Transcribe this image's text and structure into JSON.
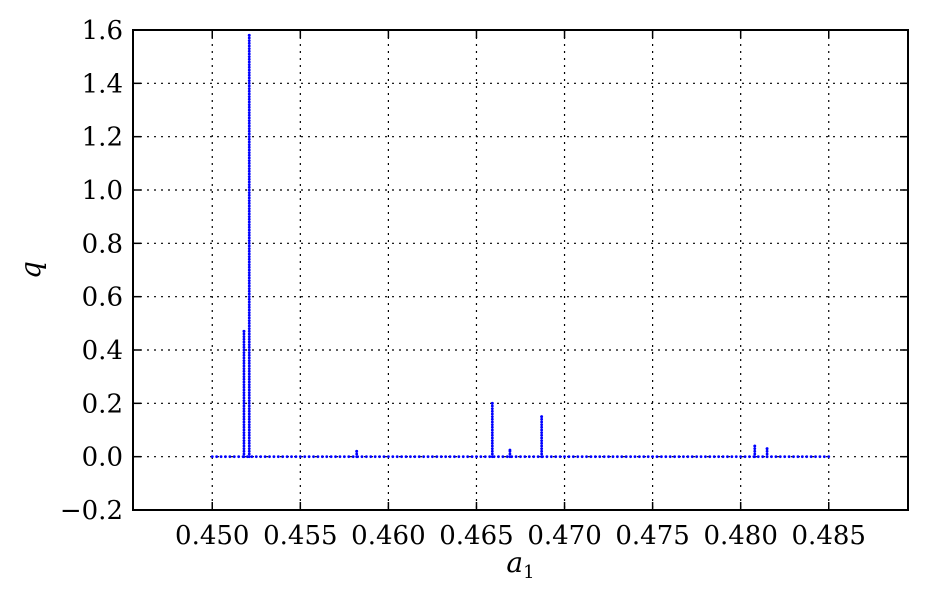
{
  "chart_data": {
    "type": "scatter",
    "xlabel": "a",
    "xlabel_subscript": "1",
    "ylabel": "q",
    "xlim": [
      0.4455,
      0.4895
    ],
    "ylim": [
      -0.2,
      1.6
    ],
    "xticks": [
      0.45,
      0.455,
      0.46,
      0.465,
      0.47,
      0.475,
      0.48,
      0.485
    ],
    "xtick_labels": [
      "0.450",
      "0.455",
      "0.460",
      "0.465",
      "0.470",
      "0.475",
      "0.480",
      "0.485"
    ],
    "yticks": [
      -0.2,
      0.0,
      0.2,
      0.4,
      0.6,
      0.8,
      1.0,
      1.2,
      1.4,
      1.6
    ],
    "ytick_labels": [
      "−0.2",
      "0.0",
      "0.2",
      "0.4",
      "0.6",
      "0.8",
      "1.0",
      "1.2",
      "1.4",
      "1.6"
    ],
    "grid": true,
    "series_color": "#0000ff",
    "baseline": {
      "x_start": 0.45,
      "x_end": 0.485,
      "x_step": 0.00025,
      "y": 0.0
    },
    "spikes": [
      {
        "x": 0.4518,
        "y_min": 0.0,
        "y_max": 0.47,
        "step": 0.01
      },
      {
        "x": 0.4521,
        "y_min": 0.0,
        "y_max": 1.58,
        "step": 0.01
      },
      {
        "x": 0.4582,
        "y_min": 0.0,
        "y_max": 0.02,
        "step": 0.01
      },
      {
        "x": 0.4659,
        "y_min": 0.0,
        "y_max": 0.2,
        "step": 0.01
      },
      {
        "x": 0.4669,
        "y_min": 0.0,
        "y_max": 0.025,
        "step": 0.01
      },
      {
        "x": 0.4687,
        "y_min": 0.0,
        "y_max": 0.15,
        "step": 0.01
      },
      {
        "x": 0.4808,
        "y_min": 0.0,
        "y_max": 0.04,
        "step": 0.01
      },
      {
        "x": 0.4815,
        "y_min": 0.0,
        "y_max": 0.03,
        "step": 0.01
      }
    ]
  }
}
